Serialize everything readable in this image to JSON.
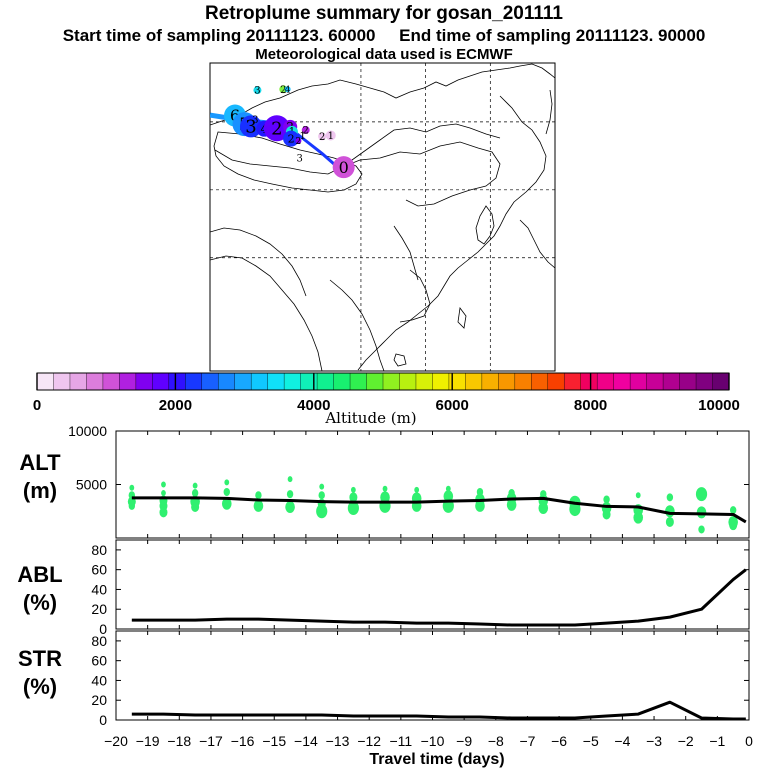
{
  "header": {
    "title": "Retroplume summary for gosan_201111",
    "start_label": "Start time of sampling 20111123. 60000",
    "end_label": "End time of sampling 20111123. 90000",
    "met_label": "Meteorological data used is ECMWF"
  },
  "colorbar": {
    "ticks": [
      "0",
      "2000",
      "4000",
      "6000",
      "8000",
      "10000"
    ],
    "label": "Altitude (m)",
    "colors": [
      "#f7e6f7",
      "#efc6ef",
      "#e6a6e6",
      "#dc7ddc",
      "#d052d8",
      "#b020e0",
      "#8000f0",
      "#6000ff",
      "#3010ff",
      "#1838ff",
      "#1860ff",
      "#1888ff",
      "#18a8ff",
      "#10c8ff",
      "#10e0f8",
      "#10f0e0",
      "#10f0b8",
      "#10f090",
      "#18f070",
      "#30f050",
      "#60f030",
      "#90f020",
      "#b8f010",
      "#d8f008",
      "#f0f000",
      "#f8e000",
      "#f8c800",
      "#f8b000",
      "#f89800",
      "#f88000",
      "#f86000",
      "#f84000",
      "#f82030",
      "#f00060",
      "#f00088",
      "#f000a0",
      "#e000a0",
      "#c80098",
      "#b00090",
      "#980088",
      "#800080",
      "#680070"
    ]
  },
  "map": {
    "plume_numbers": [
      {
        "t": "6",
        "lon": 75.8,
        "lat": 46.4,
        "r": 11,
        "c": "#18b8ff",
        "s": 16
      },
      {
        "t": "5",
        "lon": 78.0,
        "lat": 44.5,
        "r": 12,
        "c": "#1890ff",
        "s": 18
      },
      {
        "t": "3",
        "lon": 79.5,
        "lat": 44.0,
        "r": 11,
        "c": "#1830ff",
        "s": 18
      },
      {
        "t": "4",
        "lon": 82.6,
        "lat": 43.5,
        "r": 8,
        "c": "#2018ff",
        "s": 12
      },
      {
        "t": "2",
        "lon": 85.5,
        "lat": 43.6,
        "r": 13,
        "c": "#6000ff",
        "s": 18
      },
      {
        "t": "2",
        "lon": 88.6,
        "lat": 43.9,
        "r": 7,
        "c": "#8000f0",
        "s": 12
      },
      {
        "t": "1",
        "lon": 89.0,
        "lat": 42.8,
        "r": 6,
        "c": "#18e0e0",
        "s": 11
      },
      {
        "t": "2",
        "lon": 88.8,
        "lat": 41.3,
        "r": 8,
        "c": "#1830ff",
        "s": 11
      },
      {
        "t": "0",
        "lon": 101.0,
        "lat": 35.0,
        "r": 11,
        "c": "#d052d8",
        "s": 16
      },
      {
        "t": "3",
        "lon": 81.0,
        "lat": 52.0,
        "r": 4,
        "c": "#18d8e8",
        "s": 10
      },
      {
        "t": "2",
        "lon": 87.0,
        "lat": 52.2,
        "r": 4,
        "c": "#80f040",
        "s": 10
      },
      {
        "t": "4",
        "lon": 88.0,
        "lat": 52.2,
        "r": 3,
        "c": "#18c0ff",
        "s": 9
      },
      {
        "t": "3",
        "lon": 80.5,
        "lat": 45.5,
        "r": 0,
        "c": "#000",
        "s": 10
      },
      {
        "t": "2",
        "lon": 92.2,
        "lat": 43.2,
        "r": 4,
        "c": "#b020e0",
        "s": 10
      },
      {
        "t": "2",
        "lon": 96.0,
        "lat": 41.8,
        "r": 4,
        "c": "#efc6ef",
        "s": 10
      },
      {
        "t": "1",
        "lon": 98.0,
        "lat": 42.0,
        "r": 5,
        "c": "#efc6ef",
        "s": 10
      },
      {
        "t": "1",
        "lon": 91.5,
        "lat": 42.0,
        "r": 0,
        "c": "#000",
        "s": 10
      },
      {
        "t": "2",
        "lon": 90.5,
        "lat": 40.8,
        "r": 3,
        "c": "#8000f0",
        "s": 9
      },
      {
        "t": "3",
        "lon": 90.8,
        "lat": 37.0,
        "r": 0,
        "c": "#000",
        "s": 10
      }
    ]
  },
  "chart_data": [
    {
      "type": "line",
      "title": "ALT (m)",
      "panel_label": [
        "ALT",
        "(m)"
      ],
      "xlabel": "Travel time (days)",
      "ylabel": "ALT (m)",
      "xlim": [
        -20,
        0
      ],
      "ylim": [
        0,
        10000
      ],
      "yticks": [
        "10000",
        "5000"
      ],
      "yticks_values": [
        10000,
        5000
      ],
      "x": [
        -19.5,
        -18.5,
        -17.5,
        -16.5,
        -15.5,
        -14.5,
        -13.5,
        -12.5,
        -11.5,
        -10.5,
        -9.5,
        -8.5,
        -7.5,
        -6.5,
        -5.5,
        -4.5,
        -3.5,
        -2.5,
        -1.5,
        -0.5,
        -0.1
      ],
      "values": [
        3750,
        3750,
        3750,
        3700,
        3550,
        3500,
        3400,
        3350,
        3350,
        3350,
        3450,
        3500,
        3650,
        3700,
        3250,
        2950,
        2900,
        2300,
        2250,
        2200,
        1500
      ],
      "scatter": [
        [
          -19.5,
          4700,
          3
        ],
        [
          -19.5,
          4000,
          4
        ],
        [
          -19.5,
          3400,
          5
        ],
        [
          -19.5,
          3000,
          4
        ],
        [
          -18.5,
          5000,
          3
        ],
        [
          -18.5,
          4200,
          3
        ],
        [
          -18.5,
          3500,
          5
        ],
        [
          -18.5,
          3000,
          5
        ],
        [
          -18.5,
          2400,
          5
        ],
        [
          -17.5,
          4900,
          3
        ],
        [
          -17.5,
          4200,
          4
        ],
        [
          -17.5,
          3400,
          6
        ],
        [
          -17.5,
          2900,
          5
        ],
        [
          -16.5,
          5200,
          3
        ],
        [
          -16.5,
          4300,
          4
        ],
        [
          -16.5,
          3200,
          6
        ],
        [
          -15.5,
          4000,
          4
        ],
        [
          -15.5,
          3000,
          6
        ],
        [
          -14.5,
          5500,
          3
        ],
        [
          -14.5,
          4100,
          4
        ],
        [
          -14.5,
          2900,
          6
        ],
        [
          -13.5,
          4800,
          3
        ],
        [
          -13.5,
          4000,
          4
        ],
        [
          -13.5,
          3200,
          5
        ],
        [
          -13.5,
          2500,
          7
        ],
        [
          -12.5,
          4500,
          3
        ],
        [
          -12.5,
          3800,
          5
        ],
        [
          -12.5,
          2800,
          7
        ],
        [
          -11.5,
          4600,
          3
        ],
        [
          -11.5,
          3800,
          6
        ],
        [
          -11.5,
          3000,
          7
        ],
        [
          -10.5,
          4500,
          3
        ],
        [
          -10.5,
          3700,
          6
        ],
        [
          -10.5,
          3000,
          6
        ],
        [
          -9.5,
          4600,
          3
        ],
        [
          -9.5,
          3900,
          6
        ],
        [
          -9.5,
          3000,
          7
        ],
        [
          -8.5,
          4300,
          4
        ],
        [
          -8.5,
          3600,
          6
        ],
        [
          -8.5,
          3000,
          6
        ],
        [
          -7.5,
          4200,
          4
        ],
        [
          -7.5,
          3700,
          6
        ],
        [
          -7.5,
          3100,
          6
        ],
        [
          -6.5,
          4100,
          4
        ],
        [
          -6.5,
          3500,
          6
        ],
        [
          -6.5,
          2800,
          6
        ],
        [
          -5.5,
          3300,
          7
        ],
        [
          -5.5,
          2700,
          7
        ],
        [
          -4.5,
          3600,
          4
        ],
        [
          -4.5,
          2800,
          6
        ],
        [
          -4.5,
          2200,
          5
        ],
        [
          -3.5,
          4000,
          3
        ],
        [
          -3.5,
          2600,
          6
        ],
        [
          -3.5,
          1900,
          6
        ],
        [
          -2.5,
          3800,
          4
        ],
        [
          -2.5,
          2500,
          6
        ],
        [
          -2.5,
          1500,
          5
        ],
        [
          -1.5,
          4100,
          7
        ],
        [
          -1.5,
          2400,
          6
        ],
        [
          -1.5,
          800,
          4
        ],
        [
          -0.5,
          2600,
          4
        ],
        [
          -0.5,
          1500,
          6
        ],
        [
          -0.5,
          1200,
          5
        ]
      ]
    },
    {
      "type": "line",
      "title": "ABL (%)",
      "panel_label": [
        "ABL",
        "(%)"
      ],
      "ylabel": "ABL (%)",
      "xlim": [
        -20,
        0
      ],
      "ylim": [
        0,
        90
      ],
      "yticks": [
        "80",
        "60",
        "40",
        "20",
        "0"
      ],
      "yticks_values": [
        80,
        60,
        40,
        20,
        0
      ],
      "x": [
        -19.5,
        -18.5,
        -17.5,
        -16.5,
        -15.5,
        -14.5,
        -13.5,
        -12.5,
        -11.5,
        -10.5,
        -9.5,
        -8.5,
        -7.5,
        -6.5,
        -5.5,
        -4.5,
        -3.5,
        -2.5,
        -1.5,
        -0.5,
        -0.1
      ],
      "values": [
        9,
        9,
        9,
        10,
        10,
        9,
        8,
        7,
        7,
        6,
        6,
        5,
        4,
        4,
        4,
        6,
        8,
        12,
        20,
        50,
        60
      ]
    },
    {
      "type": "line",
      "title": "STR (%)",
      "panel_label": [
        "STR",
        "(%)"
      ],
      "ylabel": "STR (%)",
      "xlim": [
        -20,
        0
      ],
      "ylim": [
        0,
        90
      ],
      "yticks": [
        "80",
        "60",
        "40",
        "20",
        "0"
      ],
      "yticks_values": [
        80,
        60,
        40,
        20,
        0
      ],
      "x": [
        -19.5,
        -18.5,
        -17.5,
        -16.5,
        -15.5,
        -14.5,
        -13.5,
        -12.5,
        -11.5,
        -10.5,
        -9.5,
        -8.5,
        -7.5,
        -6.5,
        -5.5,
        -4.5,
        -3.5,
        -2.5,
        -1.5,
        -0.5,
        -0.1
      ],
      "values": [
        6,
        6,
        5,
        5,
        5,
        5,
        5,
        4,
        4,
        4,
        3,
        3,
        2,
        2,
        2,
        4,
        6,
        18,
        2,
        1,
        1
      ]
    }
  ],
  "xaxis": {
    "ticks": [
      "−20",
      "−19",
      "−18",
      "−17",
      "−16",
      "−15",
      "−14",
      "−13",
      "−12",
      "−11",
      "−10",
      "−9",
      "−8",
      "−7",
      "−6",
      "−5",
      "−4",
      "−3",
      "−2",
      "−1",
      "0"
    ],
    "tick_values": [
      -20,
      -19,
      -18,
      -17,
      -16,
      -15,
      -14,
      -13,
      -12,
      -11,
      -10,
      -9,
      -8,
      -7,
      -6,
      -5,
      -4,
      -3,
      -2,
      -1,
      0
    ],
    "label": "Travel time (days)"
  }
}
